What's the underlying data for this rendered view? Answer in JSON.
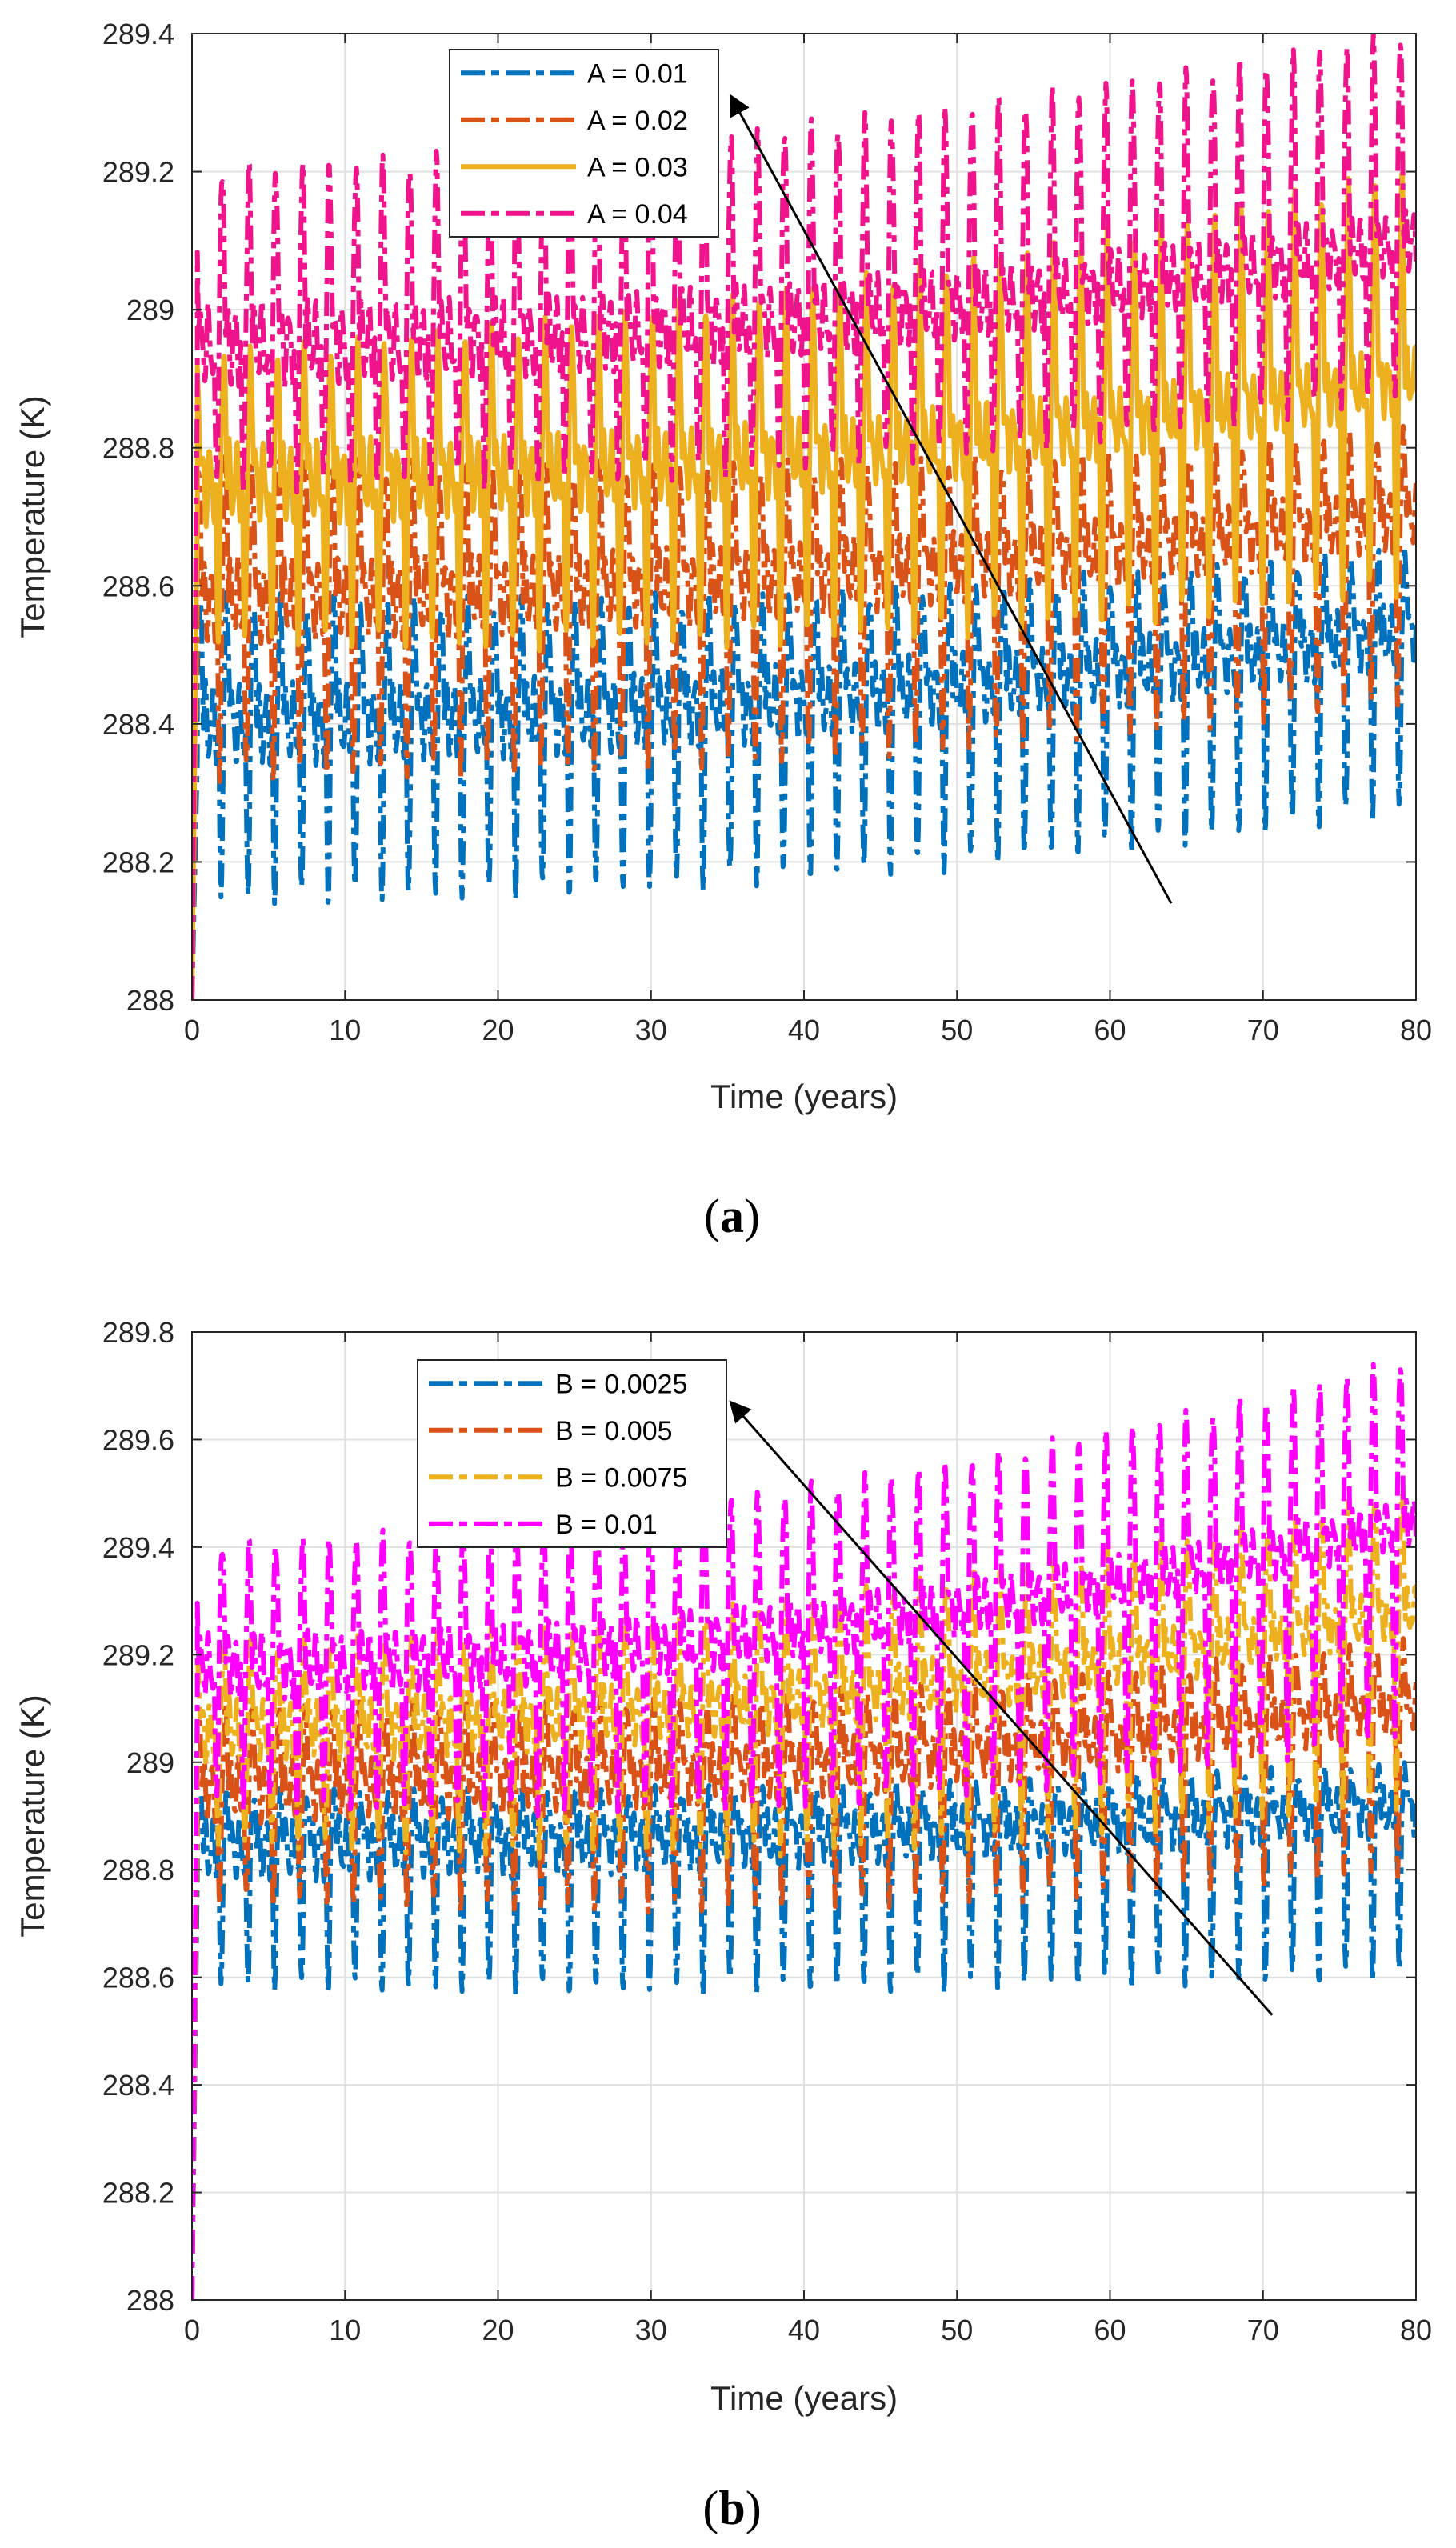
{
  "chart_data": [
    {
      "type": "line",
      "panel_label": "(a)",
      "panel_label_letter": "a",
      "xlabel": "Time (years)",
      "ylabel": "Temperature (K)",
      "xlim": [
        0,
        80
      ],
      "ylim": [
        288,
        289.4
      ],
      "xticks": [
        0,
        10,
        20,
        30,
        40,
        50,
        60,
        70,
        80
      ],
      "xtick_labels": [
        "0",
        "10",
        "20",
        "30",
        "40",
        "50",
        "60",
        "70",
        "80"
      ],
      "yticks": [
        288,
        288.2,
        288.4,
        288.6,
        288.8,
        289,
        289.2,
        289.4
      ],
      "ytick_labels": [
        "288",
        "288.2",
        "288.4",
        "288.6",
        "288.8",
        "289",
        "289.2",
        "289.4"
      ],
      "grid": true,
      "legend_position": "top-center",
      "oscillation_period_years": 1.75,
      "series": [
        {
          "name": "A = 0.01",
          "color": "#0072BD",
          "style": "dashdot",
          "baseline_start": 288.4,
          "baseline_end": 288.53,
          "swing_low_start": 0.25,
          "swing_low_end": 0.25,
          "swing_high_start": 0.18,
          "swing_high_end": 0.12
        },
        {
          "name": "A = 0.02",
          "color": "#D95319",
          "style": "dashdot",
          "baseline_start": 288.58,
          "baseline_end": 288.7,
          "swing_low_start": 0.25,
          "swing_low_end": 0.26,
          "swing_high_start": 0.2,
          "swing_high_end": 0.12
        },
        {
          "name": "A = 0.03",
          "color": "#EDB120",
          "style": "solid",
          "baseline_start": 288.75,
          "baseline_end": 288.9,
          "swing_low_start": 0.22,
          "swing_low_end": 0.3,
          "swing_high_start": 0.18,
          "swing_high_end": 0.3
        },
        {
          "name": "A = 0.04",
          "color": "#F0148C",
          "style": "dashdot",
          "baseline_start": 288.95,
          "baseline_end": 289.1,
          "swing_low_start": 0.2,
          "swing_low_end": 0.22,
          "swing_high_start": 0.25,
          "swing_high_end": 0.3
        }
      ],
      "arrow": {
        "from": [
          64,
          288.14
        ],
        "to": [
          35.2,
          289.31
        ]
      }
    },
    {
      "type": "line",
      "panel_label": "(b)",
      "panel_label_letter": "b",
      "xlabel": "Time (years)",
      "ylabel": "Temperature (K)",
      "xlim": [
        0,
        80
      ],
      "ylim": [
        288,
        289.8
      ],
      "xticks": [
        0,
        10,
        20,
        30,
        40,
        50,
        60,
        70,
        80
      ],
      "xtick_labels": [
        "0",
        "10",
        "20",
        "30",
        "40",
        "50",
        "60",
        "70",
        "80"
      ],
      "yticks": [
        288,
        288.2,
        288.4,
        288.6,
        288.8,
        289,
        289.2,
        289.4,
        289.6,
        289.8
      ],
      "ytick_labels": [
        "288",
        "288.2",
        "288.4",
        "288.6",
        "288.8",
        "289",
        "289.2",
        "289.4",
        "289.6",
        "289.8"
      ],
      "grid": true,
      "legend_position": "top-center",
      "oscillation_period_years": 1.75,
      "series": [
        {
          "name": "B = 0.0025",
          "color": "#0072BD",
          "style": "dashdot",
          "baseline_start": 288.84,
          "baseline_end": 288.91,
          "swing_low_start": 0.25,
          "swing_low_end": 0.3,
          "swing_high_start": 0.1,
          "swing_high_end": 0.08
        },
        {
          "name": "B = 0.005",
          "color": "#D95319",
          "style": "dashdot",
          "baseline_start": 288.95,
          "baseline_end": 289.1,
          "swing_low_start": 0.2,
          "swing_low_end": 0.3,
          "swing_high_start": 0.15,
          "swing_high_end": 0.12
        },
        {
          "name": "B = 0.0075",
          "color": "#EDB120",
          "style": "dashdot",
          "baseline_start": 289.06,
          "baseline_end": 289.28,
          "swing_low_start": 0.2,
          "swing_low_end": 0.35,
          "swing_high_start": 0.15,
          "swing_high_end": 0.22
        },
        {
          "name": "B = 0.01",
          "color": "#FF00FF",
          "style": "dashdot",
          "baseline_start": 289.18,
          "baseline_end": 289.45,
          "swing_low_start": 0.25,
          "swing_low_end": 0.4,
          "swing_high_start": 0.22,
          "swing_high_end": 0.3
        }
      ],
      "arrow": {
        "from": [
          70.6,
          288.53
        ],
        "to": [
          35.2,
          289.67
        ]
      }
    }
  ]
}
